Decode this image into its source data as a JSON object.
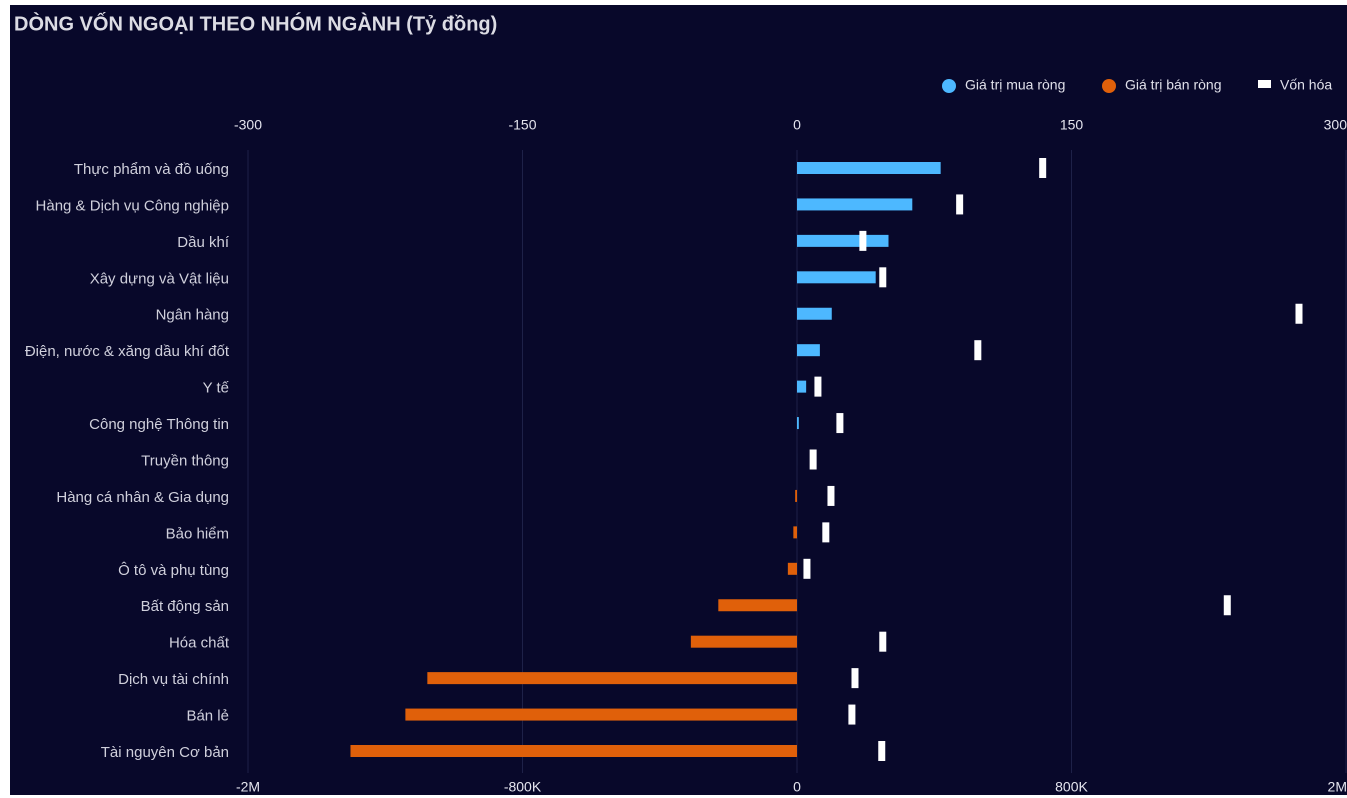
{
  "chart_data": {
    "type": "bar",
    "orientation": "horizontal",
    "title": "DÒNG VỐN NGOẠI THEO NHÓM NGÀNH (Tỷ đồng)",
    "categories": [
      "Thực phẩm và đồ uống",
      "Hàng & Dịch vụ Công nghiệp",
      "Dầu khí",
      "Xây dựng và Vật liệu",
      "Ngân hàng",
      "Điện, nước & xăng dầu khí đốt",
      "Y tế",
      "Công nghệ Thông tin",
      "Truyền thông",
      "Hàng cá nhân & Gia dụng",
      "Bảo hiểm",
      "Ô tô và phụ tùng",
      "Bất động sản",
      "Hóa chất",
      "Dịch vụ tài chính",
      "Bán lẻ",
      "Tài nguyên Cơ bản"
    ],
    "series": [
      {
        "name": "Giá trị mua ròng",
        "color": "#4db8ff",
        "axis": "x",
        "values": [
          78.5,
          63,
          50,
          43,
          19,
          12.5,
          5,
          1,
          0,
          null,
          null,
          null,
          null,
          null,
          null,
          null,
          null
        ]
      },
      {
        "name": "Giá trị bán ròng",
        "color": "#e0600a",
        "axis": "x",
        "values": [
          null,
          null,
          null,
          null,
          null,
          null,
          null,
          null,
          null,
          -1,
          -2,
          -5,
          -43,
          -58,
          -202,
          -214,
          -244
        ]
      },
      {
        "name": "Vốn hóa",
        "color": "#ffffff",
        "axis": "x2",
        "marker": true,
        "values": [
          716000,
          474000,
          192000,
          250000,
          1463000,
          527000,
          61000,
          125000,
          47000,
          99000,
          84000,
          29000,
          1254000,
          250000,
          169000,
          160000,
          247000
        ]
      }
    ],
    "xlim": [
      -300,
      300
    ],
    "xticks": [
      -300,
      -150,
      0,
      150,
      300
    ],
    "x2lim": [
      -1600000,
      1600000
    ],
    "x2ticks": [
      {
        "value": -1600000,
        "label": "-2M"
      },
      {
        "value": -800000,
        "label": "-800K"
      },
      0,
      {
        "value": 800000,
        "label": "800K"
      },
      {
        "value": 1600000,
        "label": "2M"
      }
    ],
    "grid": true,
    "legend": "top-right"
  }
}
